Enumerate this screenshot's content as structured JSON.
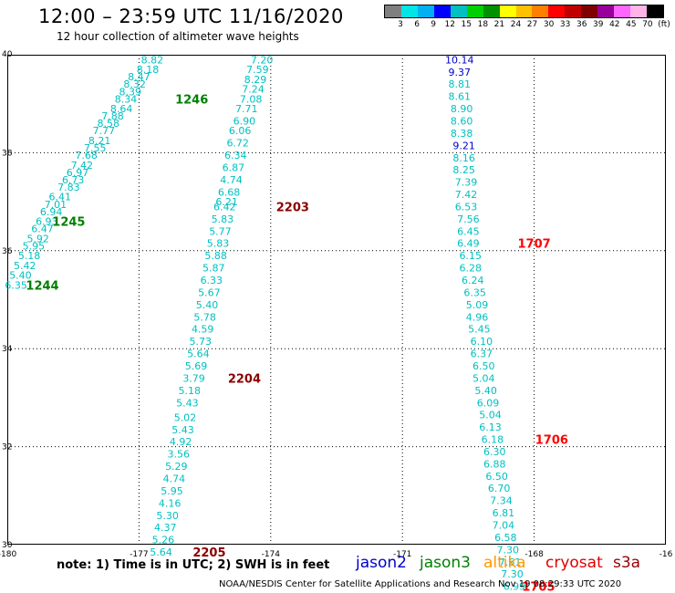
{
  "title": "12:00 – 23:59 UTC 11/16/2020",
  "subtitle": "12 hour collection of altimeter wave heights",
  "colorbar": {
    "colors": [
      "#7f7f7f",
      "#00e5e5",
      "#00b0f0",
      "#0000ff",
      "#00c0c0",
      "#00d000",
      "#009000",
      "#ffff00",
      "#ffc000",
      "#ff8000",
      "#ff0000",
      "#c00000",
      "#800000",
      "#990099",
      "#ff66ff",
      "#ffb3e6",
      "#000000"
    ],
    "labels": [
      "3",
      "6",
      "9",
      "12",
      "15",
      "18",
      "21",
      "24",
      "27",
      "30",
      "33",
      "36",
      "39",
      "42",
      "45",
      "70",
      "(ft)"
    ]
  },
  "note": "note:  1) Time is in UTC;  2) SWH is in feet",
  "satellites": [
    {
      "name": "jason2",
      "color": "#0000cc"
    },
    {
      "name": "jason3",
      "color": "#008000"
    },
    {
      "name": "altika",
      "color": "#ff9900"
    },
    {
      "name": "cryosat",
      "color": "#dd0000"
    },
    {
      "name": "s3a",
      "color": "#990000"
    }
  ],
  "credit": "NOAA/NESDIS Center for Satellite Applications and Research    Nov 19 08:29:33 UTC 2020",
  "chart_data": {
    "type": "scatter",
    "x_axis": {
      "range": [
        -180,
        -165
      ],
      "ticks": [
        "-180",
        "-177",
        "-174",
        "-171",
        "-168",
        "-16"
      ]
    },
    "y_axis": {
      "range": [
        30,
        40
      ],
      "ticks": [
        "40",
        "38",
        "36",
        "34",
        "32",
        "30"
      ]
    },
    "grid": "dotted",
    "tracks": [
      {
        "satellite": "jason3",
        "color": "#00c0c0",
        "points": [
          {
            "lon": -176.7,
            "lat": 39.9,
            "swh": "8.82"
          },
          {
            "lon": -176.8,
            "lat": 39.7,
            "swh": "8.18"
          },
          {
            "lon": -177.0,
            "lat": 39.55,
            "swh": "8.47"
          },
          {
            "lon": -177.1,
            "lat": 39.4,
            "swh": "8.32"
          },
          {
            "lon": -177.2,
            "lat": 39.25,
            "swh": "8.39"
          },
          {
            "lon": -177.3,
            "lat": 39.1,
            "swh": "8.34"
          },
          {
            "lon": -177.4,
            "lat": 38.9,
            "swh": "8.64"
          },
          {
            "lon": -177.6,
            "lat": 38.75,
            "swh": "7.88"
          },
          {
            "lon": -177.7,
            "lat": 38.6,
            "swh": "8.58"
          },
          {
            "lon": -177.8,
            "lat": 38.45,
            "swh": "7.77"
          },
          {
            "lon": -177.9,
            "lat": 38.25,
            "swh": "8.21"
          },
          {
            "lon": -178.0,
            "lat": 38.1,
            "swh": "7.55"
          },
          {
            "lon": -178.2,
            "lat": 37.95,
            "swh": "7.68"
          },
          {
            "lon": -178.3,
            "lat": 37.75,
            "swh": "7.42"
          },
          {
            "lon": -178.4,
            "lat": 37.6,
            "swh": "6.97"
          },
          {
            "lon": -178.5,
            "lat": 37.45,
            "swh": "6.73"
          },
          {
            "lon": -178.6,
            "lat": 37.3,
            "swh": "7.83"
          },
          {
            "lon": -178.8,
            "lat": 37.1,
            "swh": "6.41"
          },
          {
            "lon": -178.9,
            "lat": 36.95,
            "swh": "7.01"
          },
          {
            "lon": -179.0,
            "lat": 36.8,
            "swh": "6.94"
          },
          {
            "lon": -179.1,
            "lat": 36.6,
            "swh": "6.93"
          },
          {
            "lon": -179.2,
            "lat": 36.45,
            "swh": "6.47"
          },
          {
            "lon": -179.3,
            "lat": 36.25,
            "swh": "5.92"
          },
          {
            "lon": -179.4,
            "lat": 36.1,
            "swh": "5.95"
          },
          {
            "lon": -179.5,
            "lat": 35.9,
            "swh": "5.18"
          },
          {
            "lon": -179.6,
            "lat": 35.7,
            "swh": "5.42"
          },
          {
            "lon": -179.7,
            "lat": 35.5,
            "swh": "5.40"
          },
          {
            "lon": -179.8,
            "lat": 35.3,
            "swh": "6.35"
          }
        ]
      },
      {
        "satellite": "jason3",
        "color": "#00c0c0",
        "points": [
          {
            "lon": -174.2,
            "lat": 39.9,
            "swh": "7.20"
          },
          {
            "lon": -174.3,
            "lat": 39.7,
            "swh": "7.59"
          },
          {
            "lon": -174.35,
            "lat": 39.5,
            "swh": "8.29"
          },
          {
            "lon": -174.4,
            "lat": 39.3,
            "swh": "7.24"
          },
          {
            "lon": -174.45,
            "lat": 39.1,
            "swh": "7.08"
          },
          {
            "lon": -174.55,
            "lat": 38.9,
            "swh": "7.71"
          },
          {
            "lon": -174.6,
            "lat": 38.65,
            "swh": "6.90"
          },
          {
            "lon": -174.7,
            "lat": 38.45,
            "swh": "6.06"
          },
          {
            "lon": -174.75,
            "lat": 38.2,
            "swh": "6.72"
          },
          {
            "lon": -174.8,
            "lat": 37.95,
            "swh": "6.34"
          },
          {
            "lon": -174.85,
            "lat": 37.7,
            "swh": "6.87"
          },
          {
            "lon": -174.9,
            "lat": 37.45,
            "swh": "4.74"
          },
          {
            "lon": -174.95,
            "lat": 37.2,
            "swh": "6.68"
          },
          {
            "lon": -175.0,
            "lat": 37.0,
            "swh": "6.21"
          },
          {
            "lon": -175.05,
            "lat": 36.9,
            "swh": "6.42"
          },
          {
            "lon": -175.1,
            "lat": 36.65,
            "swh": "5.83"
          },
          {
            "lon": -175.15,
            "lat": 36.4,
            "swh": "5.77"
          },
          {
            "lon": -175.2,
            "lat": 36.15,
            "swh": "5.83"
          },
          {
            "lon": -175.25,
            "lat": 35.9,
            "swh": "5.88"
          },
          {
            "lon": -175.3,
            "lat": 35.65,
            "swh": "5.87"
          },
          {
            "lon": -175.35,
            "lat": 35.4,
            "swh": "6.33"
          },
          {
            "lon": -175.4,
            "lat": 35.15,
            "swh": "5.67"
          },
          {
            "lon": -175.45,
            "lat": 34.9,
            "swh": "5.40"
          },
          {
            "lon": -175.5,
            "lat": 34.65,
            "swh": "5.78"
          },
          {
            "lon": -175.55,
            "lat": 34.4,
            "swh": "4.59"
          },
          {
            "lon": -175.6,
            "lat": 34.15,
            "swh": "5.73"
          },
          {
            "lon": -175.65,
            "lat": 33.9,
            "swh": "5.64"
          },
          {
            "lon": -175.7,
            "lat": 33.65,
            "swh": "5.69"
          },
          {
            "lon": -175.75,
            "lat": 33.4,
            "swh": "3.79"
          },
          {
            "lon": -175.85,
            "lat": 33.15,
            "swh": "5.18"
          },
          {
            "lon": -175.9,
            "lat": 32.9,
            "swh": "5.43"
          },
          {
            "lon": -175.95,
            "lat": 32.6,
            "swh": "5.02"
          },
          {
            "lon": -176.0,
            "lat": 32.35,
            "swh": "5.43"
          },
          {
            "lon": -176.05,
            "lat": 32.1,
            "swh": "4.92"
          },
          {
            "lon": -176.1,
            "lat": 31.85,
            "swh": "3.56"
          },
          {
            "lon": -176.15,
            "lat": 31.6,
            "swh": "5.29"
          },
          {
            "lon": -176.2,
            "lat": 31.35,
            "swh": "4.74"
          },
          {
            "lon": -176.25,
            "lat": 31.1,
            "swh": "5.95"
          },
          {
            "lon": -176.3,
            "lat": 30.85,
            "swh": "4.16"
          },
          {
            "lon": -176.35,
            "lat": 30.6,
            "swh": "5.30"
          },
          {
            "lon": -176.4,
            "lat": 30.35,
            "swh": "4.37"
          },
          {
            "lon": -176.45,
            "lat": 30.1,
            "swh": "5.26"
          },
          {
            "lon": -176.5,
            "lat": 29.85,
            "swh": "5.64"
          }
        ]
      },
      {
        "satellite": "cryosat",
        "color": "#00c0c0",
        "points": [
          {
            "lon": -169.7,
            "lat": 39.9,
            "swh": "10.14",
            "color": "#0000cc"
          },
          {
            "lon": -169.7,
            "lat": 39.65,
            "swh": "9.37",
            "color": "#0000cc"
          },
          {
            "lon": -169.7,
            "lat": 39.4,
            "swh": "8.81"
          },
          {
            "lon": -169.7,
            "lat": 39.15,
            "swh": "8.61"
          },
          {
            "lon": -169.65,
            "lat": 38.9,
            "swh": "8.90"
          },
          {
            "lon": -169.65,
            "lat": 38.65,
            "swh": "8.60"
          },
          {
            "lon": -169.65,
            "lat": 38.4,
            "swh": "8.38"
          },
          {
            "lon": -169.6,
            "lat": 38.15,
            "swh": "9.21",
            "color": "#0000cc"
          },
          {
            "lon": -169.6,
            "lat": 37.9,
            "swh": "8.16"
          },
          {
            "lon": -169.6,
            "lat": 37.65,
            "swh": "8.25"
          },
          {
            "lon": -169.55,
            "lat": 37.4,
            "swh": "7.39"
          },
          {
            "lon": -169.55,
            "lat": 37.15,
            "swh": "7.42"
          },
          {
            "lon": -169.55,
            "lat": 36.9,
            "swh": "6.53"
          },
          {
            "lon": -169.5,
            "lat": 36.65,
            "swh": "7.56"
          },
          {
            "lon": -169.5,
            "lat": 36.4,
            "swh": "6.45"
          },
          {
            "lon": -169.5,
            "lat": 36.15,
            "swh": "6.49"
          },
          {
            "lon": -169.45,
            "lat": 35.9,
            "swh": "6.15"
          },
          {
            "lon": -169.45,
            "lat": 35.65,
            "swh": "6.28"
          },
          {
            "lon": -169.4,
            "lat": 35.4,
            "swh": "6.24"
          },
          {
            "lon": -169.35,
            "lat": 35.15,
            "swh": "6.35"
          },
          {
            "lon": -169.3,
            "lat": 34.9,
            "swh": "5.09"
          },
          {
            "lon": -169.3,
            "lat": 34.65,
            "swh": "4.96"
          },
          {
            "lon": -169.25,
            "lat": 34.4,
            "swh": "5.45"
          },
          {
            "lon": -169.2,
            "lat": 34.15,
            "swh": "6.10"
          },
          {
            "lon": -169.2,
            "lat": 33.9,
            "swh": "6.37"
          },
          {
            "lon": -169.15,
            "lat": 33.65,
            "swh": "6.50"
          },
          {
            "lon": -169.15,
            "lat": 33.4,
            "swh": "5.04"
          },
          {
            "lon": -169.1,
            "lat": 33.15,
            "swh": "5.40"
          },
          {
            "lon": -169.05,
            "lat": 32.9,
            "swh": "6.09"
          },
          {
            "lon": -169.0,
            "lat": 32.65,
            "swh": "5.04"
          },
          {
            "lon": -169.0,
            "lat": 32.4,
            "swh": "6.13"
          },
          {
            "lon": -168.95,
            "lat": 32.15,
            "swh": "6.18"
          },
          {
            "lon": -168.9,
            "lat": 31.9,
            "swh": "6.30"
          },
          {
            "lon": -168.9,
            "lat": 31.65,
            "swh": "6.88"
          },
          {
            "lon": -168.85,
            "lat": 31.4,
            "swh": "6.50"
          },
          {
            "lon": -168.8,
            "lat": 31.15,
            "swh": "6.70"
          },
          {
            "lon": -168.75,
            "lat": 30.9,
            "swh": "7.34"
          },
          {
            "lon": -168.7,
            "lat": 30.65,
            "swh": "6.81"
          },
          {
            "lon": -168.7,
            "lat": 30.4,
            "swh": "7.04"
          },
          {
            "lon": -168.65,
            "lat": 30.15,
            "swh": "6.58"
          },
          {
            "lon": -168.6,
            "lat": 29.9,
            "swh": "7.30"
          },
          {
            "lon": -168.55,
            "lat": 29.65,
            "swh": "7.61"
          },
          {
            "lon": -168.5,
            "lat": 29.4,
            "swh": "7.30"
          },
          {
            "lon": -168.45,
            "lat": 29.15,
            "swh": "6.99"
          }
        ]
      }
    ],
    "time_labels": [
      {
        "text": "1246",
        "lon": -175.8,
        "lat": 39.1,
        "color": "#008000"
      },
      {
        "text": "1245",
        "lon": -178.6,
        "lat": 36.6,
        "color": "#008000"
      },
      {
        "text": "1244",
        "lon": -179.2,
        "lat": 35.3,
        "color": "#008000"
      },
      {
        "text": "2203",
        "lon": -173.5,
        "lat": 36.9,
        "color": "#8b0000"
      },
      {
        "text": "2204",
        "lon": -174.6,
        "lat": 33.4,
        "color": "#8b0000"
      },
      {
        "text": "2205",
        "lon": -175.4,
        "lat": 29.85,
        "color": "#8b0000"
      },
      {
        "text": "1707",
        "lon": -168.0,
        "lat": 36.15,
        "color": "#ff0000"
      },
      {
        "text": "1706",
        "lon": -167.6,
        "lat": 32.15,
        "color": "#ff0000"
      },
      {
        "text": "1705",
        "lon": -167.9,
        "lat": 29.15,
        "color": "#ff0000"
      }
    ]
  }
}
